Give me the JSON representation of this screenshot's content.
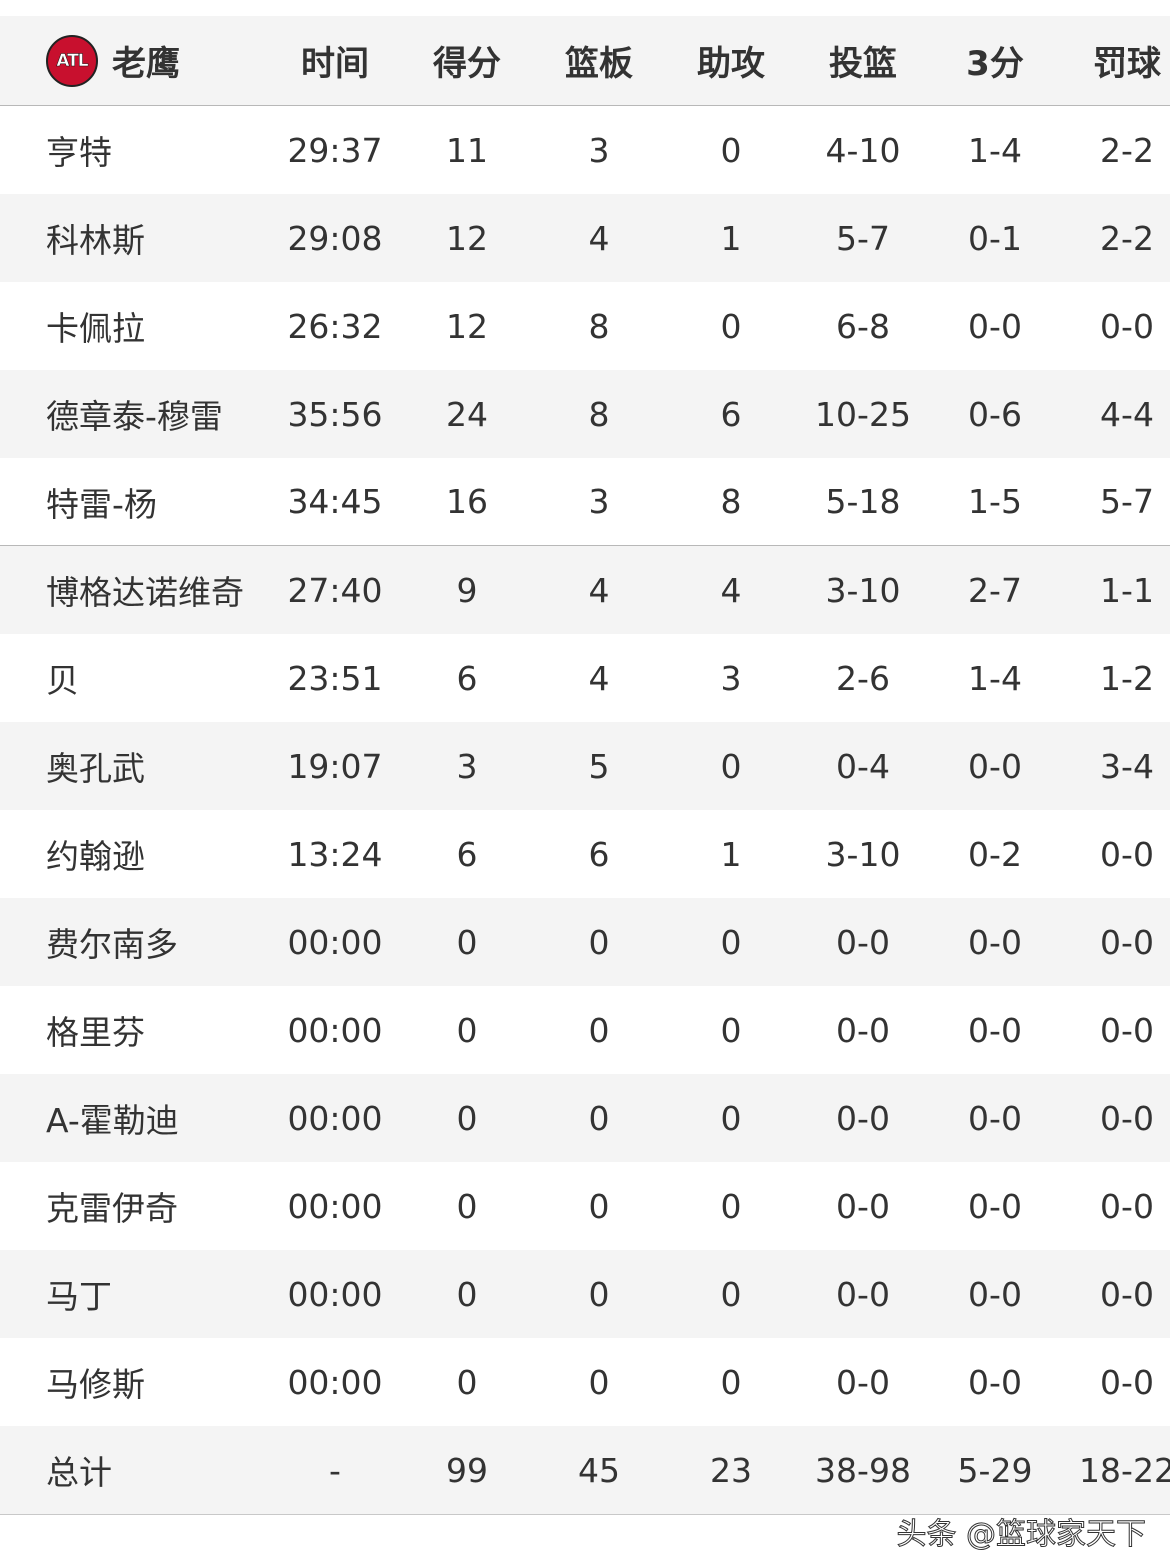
{
  "team": {
    "name": "老鹰",
    "logo_text": "ATL",
    "logo_color": "#c8102e"
  },
  "columns": [
    "时间",
    "得分",
    "篮板",
    "助攻",
    "投篮",
    "3分",
    "罚球"
  ],
  "players": [
    [
      "亨特",
      "29:37",
      "11",
      "3",
      "0",
      "4-10",
      "1-4",
      "2-2"
    ],
    [
      "科林斯",
      "29:08",
      "12",
      "4",
      "1",
      "5-7",
      "0-1",
      "2-2"
    ],
    [
      "卡佩拉",
      "26:32",
      "12",
      "8",
      "0",
      "6-8",
      "0-0",
      "0-0"
    ],
    [
      "德章泰-穆雷",
      "35:56",
      "24",
      "8",
      "6",
      "10-25",
      "0-6",
      "4-4"
    ],
    [
      "特雷-杨",
      "34:45",
      "16",
      "3",
      "8",
      "5-18",
      "1-5",
      "5-7"
    ],
    [
      "博格达诺维奇",
      "27:40",
      "9",
      "4",
      "4",
      "3-10",
      "2-7",
      "1-1"
    ],
    [
      "贝",
      "23:51",
      "6",
      "4",
      "3",
      "2-6",
      "1-4",
      "1-2"
    ],
    [
      "奥孔武",
      "19:07",
      "3",
      "5",
      "0",
      "0-4",
      "0-0",
      "3-4"
    ],
    [
      "约翰逊",
      "13:24",
      "6",
      "6",
      "1",
      "3-10",
      "0-2",
      "0-0"
    ],
    [
      "费尔南多",
      "00:00",
      "0",
      "0",
      "0",
      "0-0",
      "0-0",
      "0-0"
    ],
    [
      "格里芬",
      "00:00",
      "0",
      "0",
      "0",
      "0-0",
      "0-0",
      "0-0"
    ],
    [
      "A-霍勒迪",
      "00:00",
      "0",
      "0",
      "0",
      "0-0",
      "0-0",
      "0-0"
    ],
    [
      "克雷伊奇",
      "00:00",
      "0",
      "0",
      "0",
      "0-0",
      "0-0",
      "0-0"
    ],
    [
      "马丁",
      "00:00",
      "0",
      "0",
      "0",
      "0-0",
      "0-0",
      "0-0"
    ],
    [
      "马修斯",
      "00:00",
      "0",
      "0",
      "0",
      "0-0",
      "0-0",
      "0-0"
    ]
  ],
  "totals": [
    "总计",
    "-",
    "99",
    "45",
    "23",
    "38-98",
    "5-29",
    "18-22"
  ],
  "starters_count": 5,
  "watermark": "头条 @篮球家天下"
}
